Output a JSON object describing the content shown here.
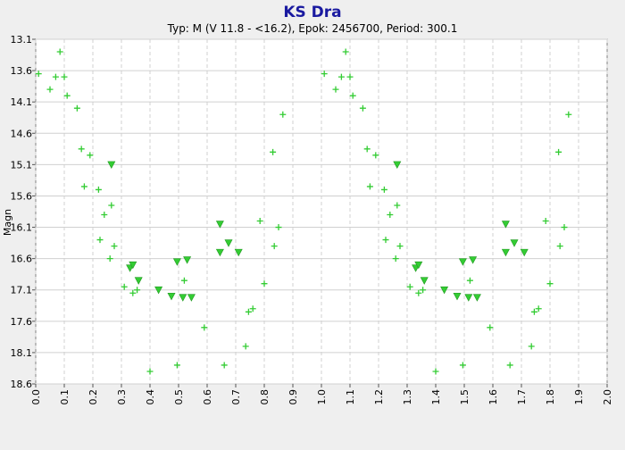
{
  "chart_data": {
    "type": "scatter",
    "title": "KS Dra",
    "subtitle": "Typ: M (V 11.8 - <16.2), Epok: 2456700, Period: 300.1",
    "ylabel": "Magn",
    "xlabel": "",
    "xlim": [
      0.0,
      2.0
    ],
    "ylim": [
      13.1,
      18.6
    ],
    "y_inverted": true,
    "x_ticks": [
      "0.0",
      "0.1",
      "0.2",
      "0.3",
      "0.4",
      "0.5",
      "0.6",
      "0.7",
      "0.8",
      "0.9",
      "1.0",
      "1.1",
      "1.2",
      "1.3",
      "1.4",
      "1.5",
      "1.6",
      "1.7",
      "1.8",
      "1.9",
      "2.0"
    ],
    "y_ticks": [
      "13.1",
      "13.6",
      "14.1",
      "14.6",
      "15.1",
      "15.6",
      "16.1",
      "16.6",
      "17.1",
      "17.6",
      "18.1",
      "18.6"
    ],
    "grid": true,
    "colors": {
      "marker": "#33cc33",
      "title": "#1a1aa0",
      "plot_bg": "#ffffff",
      "page_bg": "#efefef",
      "grid": "#d0d0d0"
    },
    "series": [
      {
        "marker": "plus",
        "points": [
          [
            0.01,
            13.65
          ],
          [
            0.05,
            13.9
          ],
          [
            0.07,
            13.7
          ],
          [
            0.085,
            13.3
          ],
          [
            0.1,
            13.7
          ],
          [
            0.11,
            14.0
          ],
          [
            0.145,
            14.2
          ],
          [
            0.16,
            14.85
          ],
          [
            0.17,
            15.45
          ],
          [
            0.19,
            14.95
          ],
          [
            0.22,
            15.5
          ],
          [
            0.225,
            16.3
          ],
          [
            0.24,
            15.9
          ],
          [
            0.26,
            16.6
          ],
          [
            0.265,
            15.75
          ],
          [
            0.275,
            16.4
          ],
          [
            0.31,
            17.05
          ],
          [
            0.34,
            17.15
          ],
          [
            0.355,
            17.1
          ],
          [
            0.4,
            18.4
          ],
          [
            0.495,
            18.3
          ],
          [
            0.52,
            16.95
          ],
          [
            0.59,
            17.7
          ],
          [
            0.66,
            18.3
          ],
          [
            0.735,
            18.0
          ],
          [
            0.745,
            17.45
          ],
          [
            0.76,
            17.4
          ],
          [
            0.785,
            16.0
          ],
          [
            0.8,
            17.0
          ],
          [
            0.83,
            14.9
          ],
          [
            0.835,
            16.4
          ],
          [
            0.85,
            16.1
          ],
          [
            0.865,
            14.3
          ],
          [
            1.01,
            13.65
          ],
          [
            1.05,
            13.9
          ],
          [
            1.07,
            13.7
          ],
          [
            1.085,
            13.3
          ],
          [
            1.1,
            13.7
          ],
          [
            1.11,
            14.0
          ],
          [
            1.145,
            14.2
          ],
          [
            1.16,
            14.85
          ],
          [
            1.17,
            15.45
          ],
          [
            1.19,
            14.95
          ],
          [
            1.22,
            15.5
          ],
          [
            1.225,
            16.3
          ],
          [
            1.24,
            15.9
          ],
          [
            1.26,
            16.6
          ],
          [
            1.265,
            15.75
          ],
          [
            1.275,
            16.4
          ],
          [
            1.31,
            17.05
          ],
          [
            1.34,
            17.15
          ],
          [
            1.355,
            17.1
          ],
          [
            1.4,
            18.4
          ],
          [
            1.495,
            18.3
          ],
          [
            1.52,
            16.95
          ],
          [
            1.59,
            17.7
          ],
          [
            1.66,
            18.3
          ],
          [
            1.735,
            18.0
          ],
          [
            1.745,
            17.45
          ],
          [
            1.76,
            17.4
          ],
          [
            1.785,
            16.0
          ],
          [
            1.8,
            17.0
          ],
          [
            1.83,
            14.9
          ],
          [
            1.835,
            16.4
          ],
          [
            1.85,
            16.1
          ],
          [
            1.865,
            14.3
          ]
        ]
      },
      {
        "marker": "triangle-down",
        "points": [
          [
            0.265,
            15.1
          ],
          [
            0.33,
            16.75
          ],
          [
            0.34,
            16.7
          ],
          [
            0.36,
            16.95
          ],
          [
            0.43,
            17.1
          ],
          [
            0.475,
            17.2
          ],
          [
            0.495,
            16.65
          ],
          [
            0.515,
            17.22
          ],
          [
            0.53,
            16.62
          ],
          [
            0.545,
            17.22
          ],
          [
            0.645,
            16.05
          ],
          [
            0.645,
            16.5
          ],
          [
            0.675,
            16.35
          ],
          [
            0.71,
            16.5
          ],
          [
            1.265,
            15.1
          ],
          [
            1.33,
            16.75
          ],
          [
            1.34,
            16.7
          ],
          [
            1.36,
            16.95
          ],
          [
            1.43,
            17.1
          ],
          [
            1.475,
            17.2
          ],
          [
            1.495,
            16.65
          ],
          [
            1.515,
            17.22
          ],
          [
            1.53,
            16.62
          ],
          [
            1.545,
            17.22
          ],
          [
            1.645,
            16.05
          ],
          [
            1.645,
            16.5
          ],
          [
            1.675,
            16.35
          ],
          [
            1.71,
            16.5
          ]
        ]
      }
    ]
  }
}
